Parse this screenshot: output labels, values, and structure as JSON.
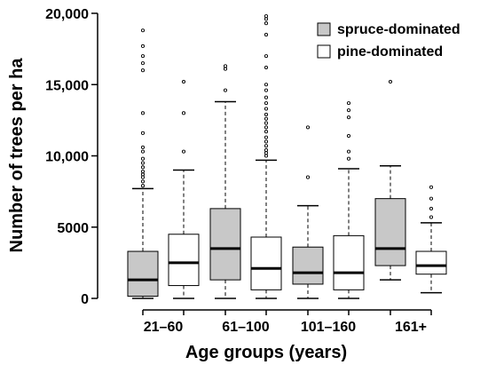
{
  "chart_data": {
    "type": "boxplot",
    "xlabel": "Age groups (years)",
    "ylabel": "Number of trees per ha",
    "ylim": [
      0,
      20000
    ],
    "yticks": [
      0,
      5000,
      10000,
      15000,
      20000
    ],
    "ytick_labels": [
      "0",
      "5000",
      "10,000",
      "15,000",
      "20,000"
    ],
    "categories": [
      "21–60",
      "61–100",
      "101–160",
      "161+"
    ],
    "legend_position": "top-right",
    "series": [
      {
        "name": "spruce-dominated",
        "color": "#c8c8c8",
        "boxes": [
          {
            "whisker_low": 0,
            "q1": 150,
            "median": 1300,
            "q3": 3300,
            "whisker_high": 7700,
            "outliers": [
              7900,
              8200,
              8500,
              8700,
              8900,
              9200,
              9500,
              9800,
              10300,
              10600,
              11600,
              13000,
              16000,
              16500,
              17000,
              17700,
              18800
            ]
          },
          {
            "whisker_low": 0,
            "q1": 1300,
            "median": 3500,
            "q3": 6300,
            "whisker_high": 13800,
            "outliers": [
              14600,
              16100,
              16300
            ]
          },
          {
            "whisker_low": 0,
            "q1": 1000,
            "median": 1800,
            "q3": 3600,
            "whisker_high": 6500,
            "outliers": [
              8500,
              12000
            ]
          },
          {
            "whisker_low": 1300,
            "q1": 2300,
            "median": 3500,
            "q3": 7000,
            "whisker_high": 9300,
            "outliers": [
              15200
            ]
          }
        ]
      },
      {
        "name": "pine-dominated",
        "color": "#ffffff",
        "boxes": [
          {
            "whisker_low": 0,
            "q1": 900,
            "median": 2500,
            "q3": 4500,
            "whisker_high": 9000,
            "outliers": [
              10300,
              13000,
              15200
            ]
          },
          {
            "whisker_low": 0,
            "q1": 600,
            "median": 2100,
            "q3": 4300,
            "whisker_high": 9700,
            "outliers": [
              10000,
              10200,
              10400,
              10700,
              11000,
              11300,
              11700,
              12000,
              12300,
              12600,
              12900,
              13300,
              13700,
              14100,
              14600,
              15000,
              16200,
              17000,
              18500,
              19300,
              19600,
              19800
            ]
          },
          {
            "whisker_low": 0,
            "q1": 600,
            "median": 1800,
            "q3": 4400,
            "whisker_high": 9100,
            "outliers": [
              9800,
              10300,
              11400,
              12700,
              13200,
              13700
            ]
          },
          {
            "whisker_low": 400,
            "q1": 1700,
            "median": 2300,
            "q3": 3300,
            "whisker_high": 5300,
            "outliers": [
              5700,
              6300,
              7000,
              7800
            ]
          }
        ]
      }
    ]
  }
}
